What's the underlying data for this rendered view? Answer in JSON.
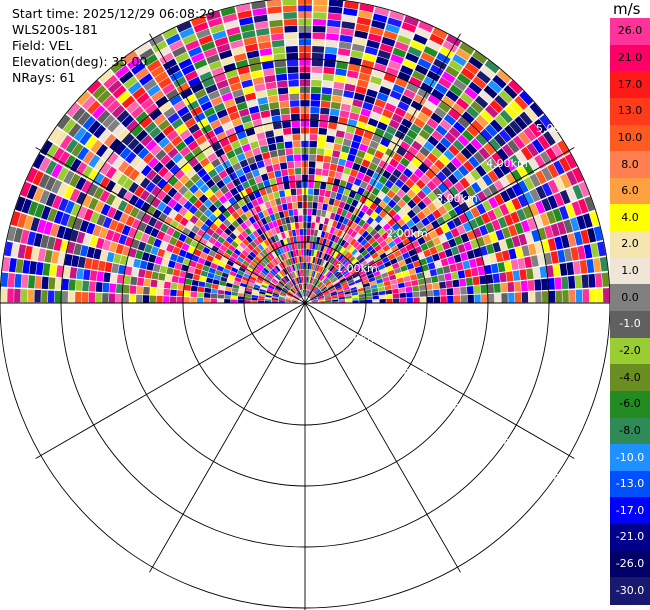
{
  "header": {
    "start_time": "Start time: 2025/12/29 06:08:29",
    "instrument": "WLS200s-181",
    "field": "Field: VEL",
    "elevation": "Elevation(deg): 35.00",
    "nrays": "NRays: 61"
  },
  "ranges": {
    "labels": [
      "1.00km",
      "2.00km",
      "3.00km",
      "4.00km",
      "5.00km"
    ]
  },
  "colorbar": {
    "unit": "m/s",
    "levels": [
      {
        "label": "26.0",
        "color": "#ff3399"
      },
      {
        "label": "21.0",
        "color": "#ff0066"
      },
      {
        "label": "17.0",
        "color": "#ff1a1a"
      },
      {
        "label": "13.0",
        "color": "#ff3b1a"
      },
      {
        "label": "10.0",
        "color": "#ff5a1f"
      },
      {
        "label": "8.0",
        "color": "#ff7f50"
      },
      {
        "label": "6.0",
        "color": "#ffa040"
      },
      {
        "label": "4.0",
        "color": "#ffff00"
      },
      {
        "label": "2.0",
        "color": "#f5e6b0"
      },
      {
        "label": "1.0",
        "color": "#f0e6d8"
      },
      {
        "label": "0.0",
        "color": "#808080"
      },
      {
        "label": "-1.0",
        "color": "#606060"
      },
      {
        "label": "-2.0",
        "color": "#9acd32"
      },
      {
        "label": "-4.0",
        "color": "#6b8e23"
      },
      {
        "label": "-6.0",
        "color": "#228b22"
      },
      {
        "label": "-8.0",
        "color": "#2e8b57"
      },
      {
        "label": "-10.0",
        "color": "#1e90ff"
      },
      {
        "label": "-13.0",
        "color": "#0050ff"
      },
      {
        "label": "-17.0",
        "color": "#0000ff"
      },
      {
        "label": "-21.0",
        "color": "#00008b"
      },
      {
        "label": "-26.0",
        "color": "#000066"
      },
      {
        "label": "-30.0",
        "color": "#191970"
      }
    ]
  }
}
